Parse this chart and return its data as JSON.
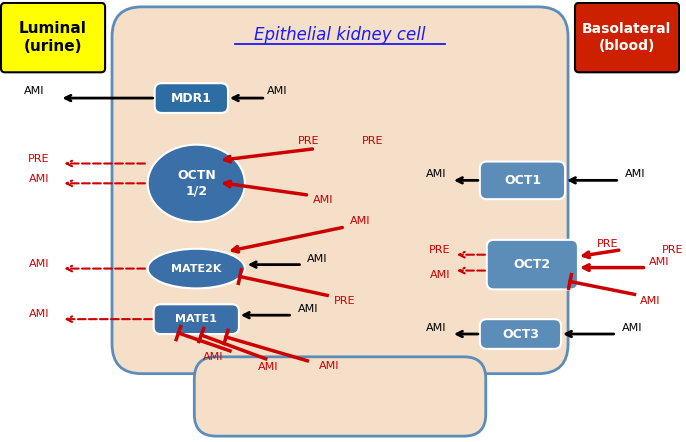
{
  "title": "Epithelial kidney cell",
  "luminal_label": "Luminal\n(urine)",
  "basolateral_label": "Basolateral\n(blood)",
  "cell_bg": "#f5dfc8",
  "cell_border": "#5b8db8",
  "transporter_fill_left": "#3a6fa8",
  "transporter_fill_right": "#5b8db8",
  "mdr1_fill": "#2e6da4",
  "text_color_black": "#000000",
  "text_color_red": "#cc0000",
  "luminal_bg": "#ffff00",
  "basolateral_bg": "#cc2000"
}
